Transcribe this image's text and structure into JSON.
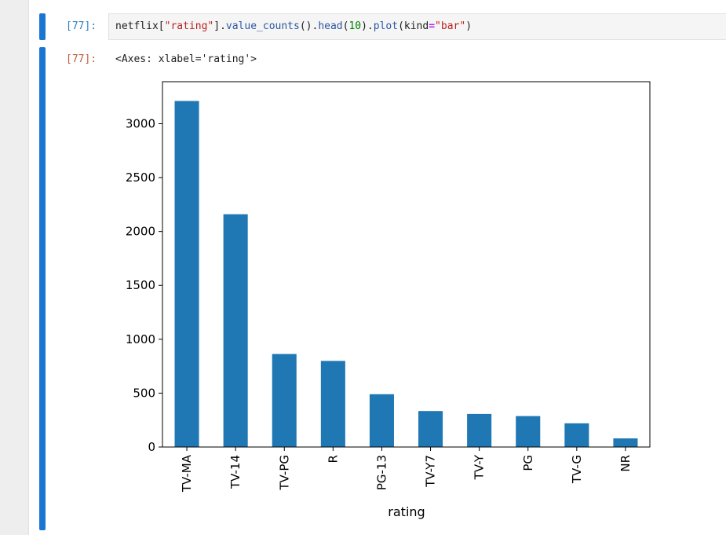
{
  "cells": [
    {
      "prompt": "[77]:",
      "code": {
        "t1": "netflix[",
        "t2": "\"rating\"",
        "t3": "].",
        "t4": "value_counts",
        "t5": "().",
        "t6": "head",
        "t7": "(",
        "t8": "10",
        "t9": ").",
        "t10": "plot",
        "t11": "(kind",
        "t12": "=",
        "t13": "\"bar\"",
        "t14": ")"
      }
    },
    {
      "prompt": "[77]:",
      "output_text": "<Axes: xlabel='rating'>"
    }
  ],
  "colors": {
    "bar": "#1f77b4",
    "collapser": "#1976d2",
    "in_prompt": "#307fc1",
    "out_prompt": "#bf5b3d"
  },
  "chart_data": {
    "type": "bar",
    "categories": [
      "TV-MA",
      "TV-14",
      "TV-PG",
      "R",
      "PG-13",
      "TV-Y7",
      "TV-Y",
      "PG",
      "TV-G",
      "NR"
    ],
    "values": [
      3211,
      2160,
      863,
      799,
      490,
      334,
      307,
      287,
      220,
      80
    ],
    "xlabel": "rating",
    "ylabel": "",
    "ylim": [
      0,
      3390
    ],
    "yticks": [
      0,
      500,
      1000,
      1500,
      2000,
      2500,
      3000
    ],
    "grid": false
  }
}
